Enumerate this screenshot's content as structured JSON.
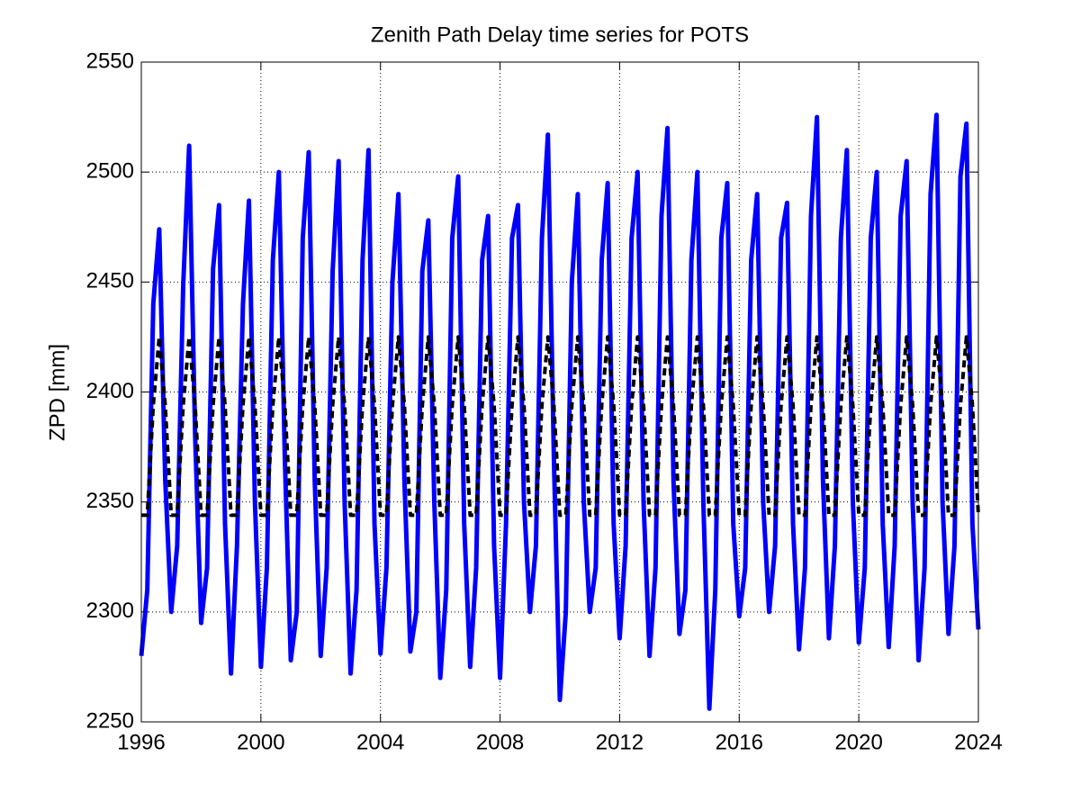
{
  "chart_data": {
    "type": "line",
    "title": "Zenith Path Delay time series for POTS",
    "ylabel": "ZPD [mm]",
    "xlim": [
      1996,
      2024
    ],
    "xticks": [
      1996,
      2000,
      2004,
      2008,
      2012,
      2016,
      2020,
      2024
    ],
    "ylim": [
      2250,
      2550
    ],
    "yticks": [
      2250,
      2300,
      2350,
      2400,
      2450,
      2500,
      2550
    ],
    "grid": true,
    "x": [
      1996,
      1996.2,
      1996.4,
      1996.6,
      1996.8,
      1997,
      1997.2,
      1997.4,
      1997.6,
      1997.8,
      1998,
      1998.2,
      1998.4,
      1998.6,
      1998.8,
      1999,
      1999.2,
      1999.4,
      1999.6,
      1999.8,
      2000,
      2000.2,
      2000.4,
      2000.6,
      2000.8,
      2001,
      2001.2,
      2001.4,
      2001.6,
      2001.8,
      2002,
      2002.2,
      2002.4,
      2002.6,
      2002.8,
      2003,
      2003.2,
      2003.4,
      2003.6,
      2003.8,
      2004,
      2004.2,
      2004.4,
      2004.6,
      2004.8,
      2005,
      2005.2,
      2005.4,
      2005.6,
      2005.8,
      2006,
      2006.2,
      2006.4,
      2006.6,
      2006.8,
      2007,
      2007.2,
      2007.4,
      2007.6,
      2007.8,
      2008,
      2008.2,
      2008.4,
      2008.6,
      2008.8,
      2009,
      2009.2,
      2009.4,
      2009.6,
      2009.8,
      2010,
      2010.2,
      2010.4,
      2010.6,
      2010.8,
      2011,
      2011.2,
      2011.4,
      2011.6,
      2011.8,
      2012,
      2012.2,
      2012.4,
      2012.6,
      2012.8,
      2013,
      2013.2,
      2013.4,
      2013.6,
      2013.8,
      2014,
      2014.2,
      2014.4,
      2014.6,
      2014.8,
      2015,
      2015.2,
      2015.4,
      2015.6,
      2015.8,
      2016,
      2016.2,
      2016.4,
      2016.6,
      2016.8,
      2017,
      2017.2,
      2017.4,
      2017.6,
      2017.8,
      2018,
      2018.2,
      2018.4,
      2018.6,
      2018.8,
      2019,
      2019.2,
      2019.4,
      2019.6,
      2019.8,
      2020,
      2020.2,
      2020.4,
      2020.6,
      2020.8,
      2021,
      2021.2,
      2021.4,
      2021.6,
      2021.8,
      2022,
      2022.2,
      2022.4,
      2022.6,
      2022.8,
      2023,
      2023.2,
      2023.4,
      2023.6,
      2023.8,
      2024
    ],
    "series": [
      {
        "color": "#0000ff",
        "dashed": false,
        "values": [
          2280,
          2310,
          2440,
          2474,
          2360,
          2300,
          2330,
          2448,
          2512,
          2380,
          2295,
          2320,
          2456,
          2485,
          2340,
          2272,
          2330,
          2440,
          2487,
          2350,
          2275,
          2320,
          2460,
          2500,
          2370,
          2278,
          2300,
          2470,
          2509,
          2360,
          2280,
          2320,
          2455,
          2505,
          2350,
          2272,
          2310,
          2460,
          2510,
          2340,
          2281,
          2320,
          2450,
          2490,
          2360,
          2282,
          2300,
          2455,
          2478,
          2350,
          2270,
          2310,
          2470,
          2498,
          2340,
          2275,
          2320,
          2460,
          2480,
          2330,
          2270,
          2340,
          2470,
          2485,
          2350,
          2300,
          2330,
          2470,
          2517,
          2370,
          2260,
          2300,
          2450,
          2490,
          2350,
          2300,
          2320,
          2460,
          2495,
          2340,
          2288,
          2330,
          2470,
          2500,
          2350,
          2280,
          2320,
          2480,
          2520,
          2360,
          2290,
          2310,
          2460,
          2500,
          2350,
          2256,
          2310,
          2470,
          2495,
          2340,
          2298,
          2320,
          2460,
          2490,
          2350,
          2300,
          2330,
          2470,
          2486,
          2340,
          2283,
          2320,
          2480,
          2525,
          2360,
          2288,
          2330,
          2470,
          2510,
          2350,
          2286,
          2320,
          2470,
          2500,
          2340,
          2284,
          2330,
          2480,
          2505,
          2350,
          2278,
          2320,
          2490,
          2526,
          2350,
          2290,
          2330,
          2498,
          2522,
          2340,
          2292
        ]
      },
      {
        "color": "#000000",
        "dashed": true,
        "values": [
          2344,
          2344,
          2394,
          2425,
          2394,
          2344,
          2344,
          2394,
          2425,
          2394,
          2344,
          2344,
          2394,
          2425,
          2394,
          2344,
          2344,
          2394,
          2425,
          2394,
          2344,
          2344,
          2394,
          2425,
          2394,
          2344,
          2344,
          2394,
          2425,
          2394,
          2344,
          2344,
          2394,
          2425,
          2394,
          2344,
          2344,
          2394,
          2425,
          2394,
          2344,
          2344,
          2394,
          2425,
          2394,
          2344,
          2344,
          2394,
          2425,
          2394,
          2344,
          2344,
          2394,
          2425,
          2394,
          2344,
          2344,
          2394,
          2425,
          2394,
          2344,
          2344,
          2394,
          2425,
          2394,
          2344,
          2344,
          2394,
          2425,
          2394,
          2344,
          2344,
          2394,
          2425,
          2394,
          2344,
          2344,
          2394,
          2425,
          2394,
          2344,
          2344,
          2394,
          2425,
          2394,
          2344,
          2344,
          2394,
          2425,
          2394,
          2344,
          2344,
          2394,
          2425,
          2394,
          2344,
          2344,
          2394,
          2425,
          2394,
          2344,
          2344,
          2394,
          2425,
          2394,
          2344,
          2344,
          2394,
          2425,
          2394,
          2344,
          2344,
          2394,
          2425,
          2394,
          2344,
          2344,
          2394,
          2425,
          2394,
          2344,
          2344,
          2394,
          2425,
          2394,
          2344,
          2344,
          2394,
          2425,
          2394,
          2344,
          2344,
          2394,
          2425,
          2394,
          2344,
          2344,
          2394,
          2425,
          2394,
          2344
        ]
      }
    ]
  }
}
